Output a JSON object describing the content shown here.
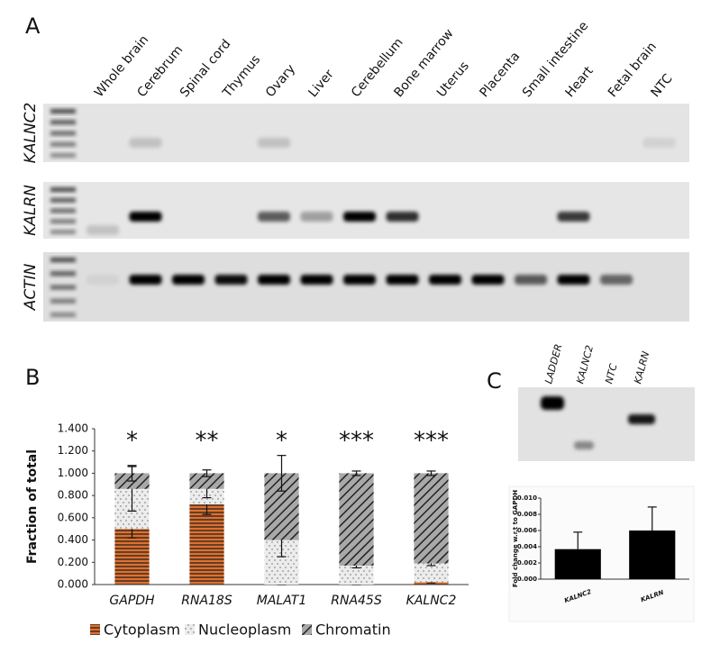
{
  "panel_labels": [
    "A",
    "B",
    "C"
  ],
  "panel_a": {
    "lanes": [
      "Whole brain",
      "Cerebrum",
      "Spinal cord",
      "Thymus",
      "Ovary",
      "Liver",
      "Cerebellum",
      "Bone marrow",
      "Uterus",
      "Placenta",
      "Small intestine",
      "Heart",
      "Fetal brain",
      "NTC"
    ],
    "rows": [
      "KALNC2",
      "KALRN",
      "ACTIN"
    ]
  },
  "panel_c_gel": {
    "lanes": [
      "LADDER",
      "KALNC2",
      "NTC",
      "KALRN"
    ]
  },
  "chart_data": [
    {
      "type": "bar",
      "stacked": true,
      "y_label": "Fraction of total",
      "categories": [
        "GAPDH",
        "RNA18S",
        "MALAT1",
        "RNA45S",
        "KALNC2"
      ],
      "annotations": [
        "*",
        "**",
        "*",
        "***",
        "***"
      ],
      "series": [
        {
          "name": "Cytoplasm",
          "color": "#e0702e",
          "values": [
            0.5,
            0.72,
            0,
            0,
            0.02
          ],
          "errors": [
            0.08,
            0.09,
            0,
            0,
            0.005
          ]
        },
        {
          "name": "Nucleoplasm",
          "color": "#ececec",
          "values": [
            0.36,
            0.14,
            0.4,
            0.17,
            0.17
          ],
          "errors": [
            0.2,
            0.08,
            0.15,
            0.02,
            0.02
          ]
        },
        {
          "name": "Chromatin",
          "color": "#a8a8a8",
          "values": [
            0.14,
            0.14,
            0.6,
            0.83,
            0.81
          ],
          "errors": [
            0.07,
            0.03,
            0.16,
            0.02,
            0.02
          ]
        }
      ],
      "ylim": [
        0,
        1.4
      ],
      "yticks": [
        {
          "value": 0,
          "label": "0.000"
        },
        {
          "value": 0.2,
          "label": "0.200"
        },
        {
          "value": 0.4,
          "label": "0.400"
        },
        {
          "value": 0.6,
          "label": "0.600"
        },
        {
          "value": 0.8,
          "label": "0.800"
        },
        {
          "value": 1.0,
          "label": "1.000"
        },
        {
          "value": 1.2,
          "label": "1.200"
        },
        {
          "value": 1.4,
          "label": "1.400"
        }
      ]
    },
    {
      "type": "bar",
      "y_label": "Fold change w.r.t to GAPDH",
      "categories": [
        "KALNC2",
        "KALRN"
      ],
      "values": [
        0.0037,
        0.006
      ],
      "errors": [
        0.0021,
        0.0029
      ],
      "color": "#000000",
      "ylim": [
        0,
        0.01
      ],
      "yticks": [
        {
          "value": 0,
          "label": "0.000"
        },
        {
          "value": 0.002,
          "label": "0.002"
        },
        {
          "value": 0.004,
          "label": "0.004"
        },
        {
          "value": 0.006,
          "label": "0.006"
        },
        {
          "value": 0.008,
          "label": "0.008"
        },
        {
          "value": 0.01,
          "label": "0.010"
        }
      ]
    }
  ]
}
